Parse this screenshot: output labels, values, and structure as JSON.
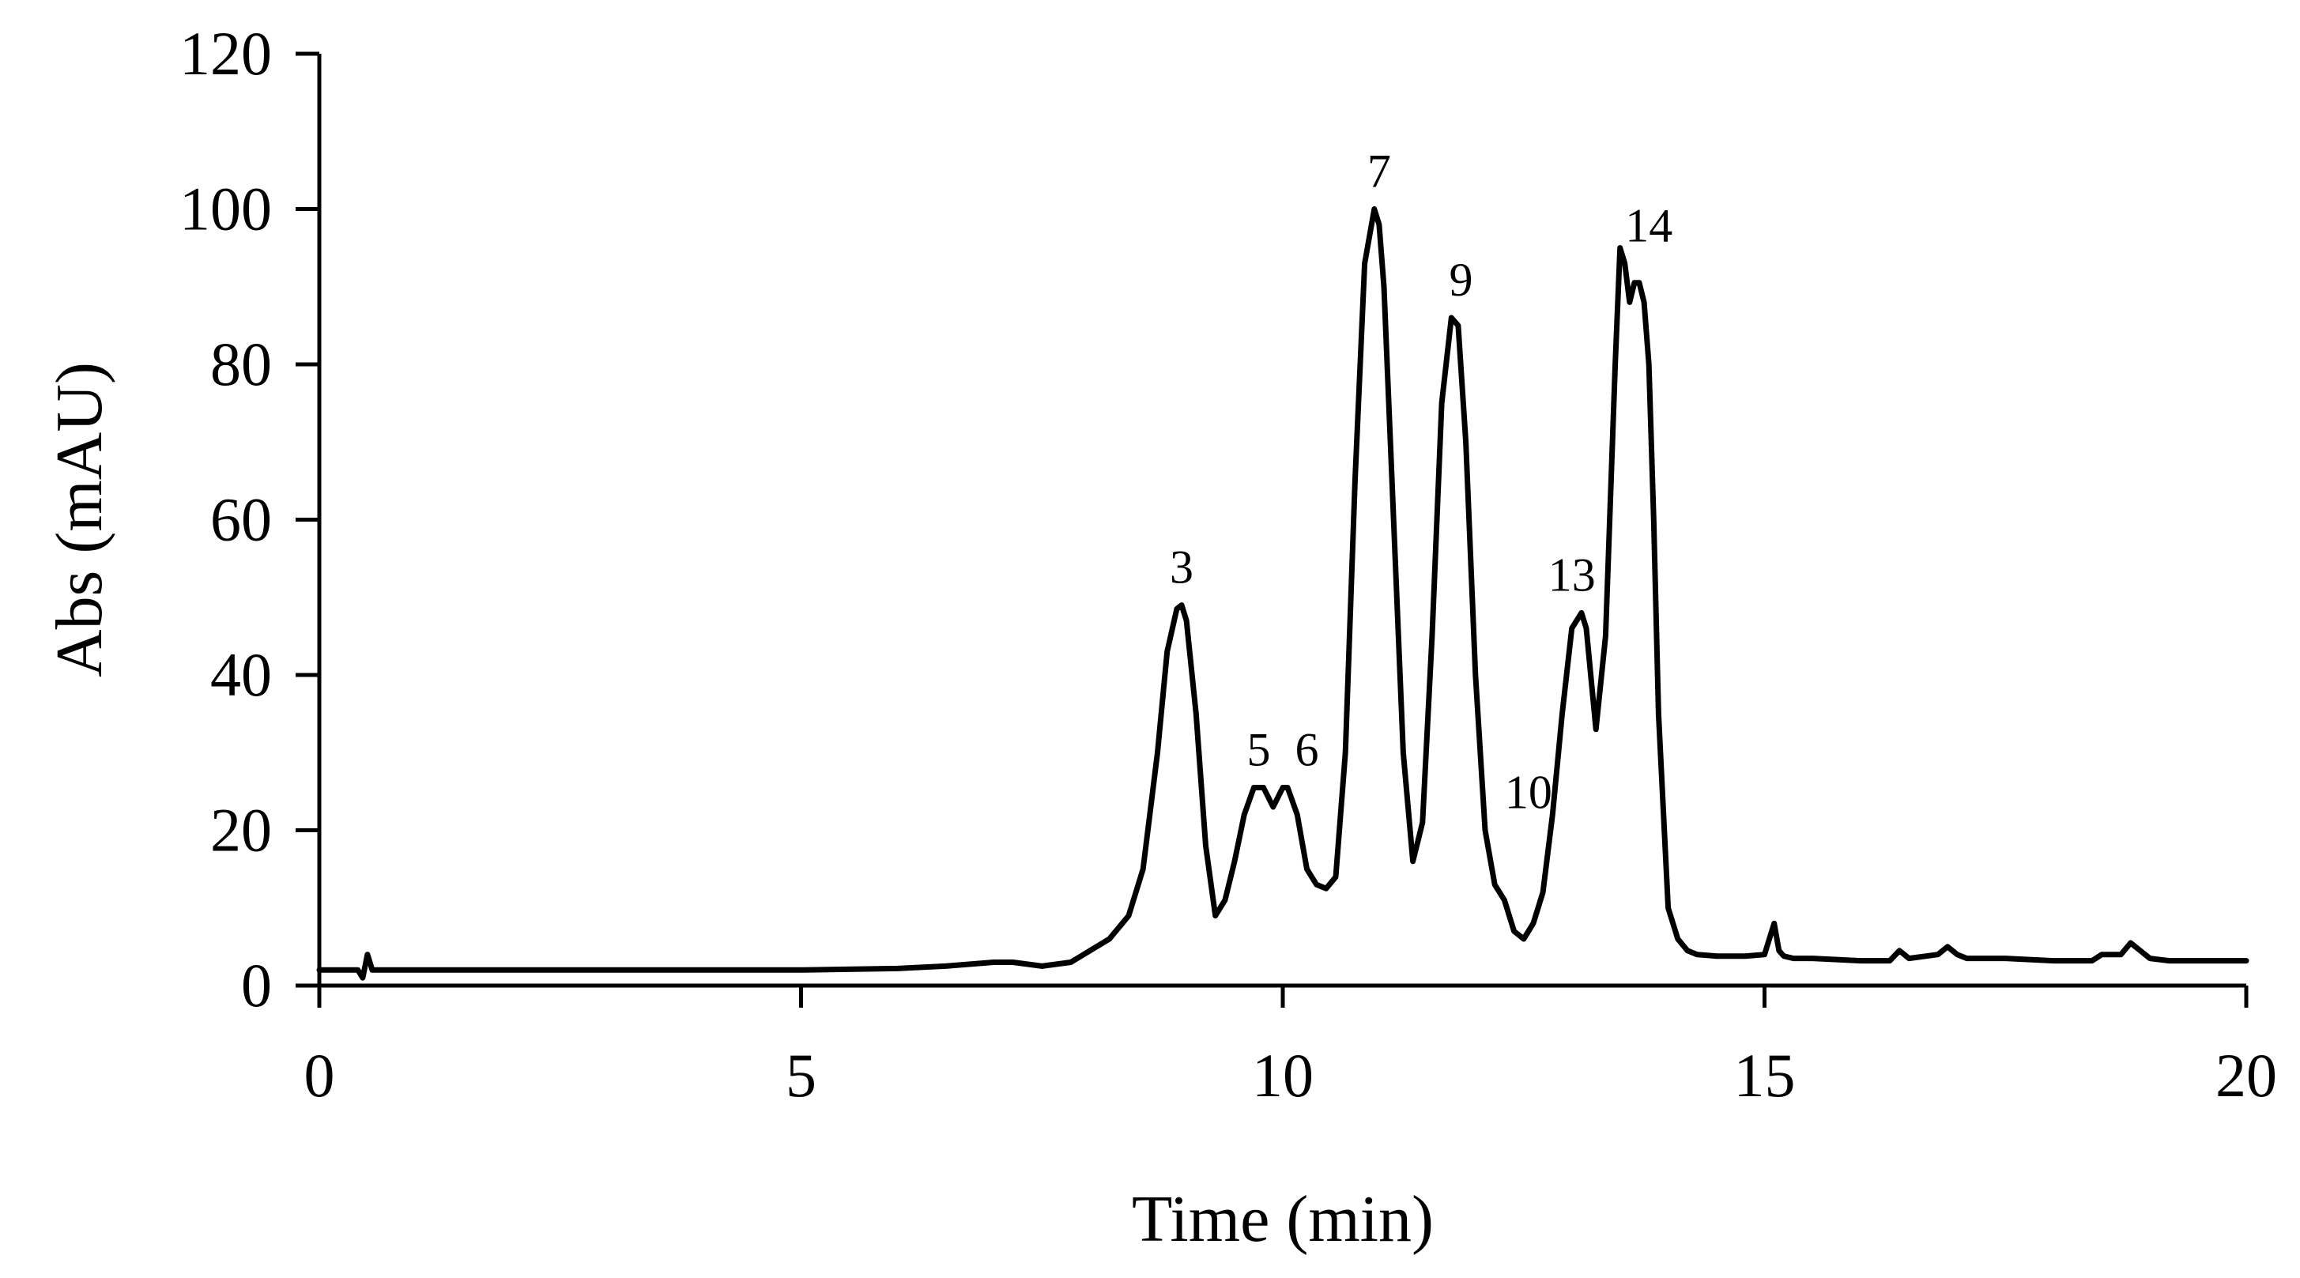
{
  "chart_data": {
    "type": "line",
    "xlabel": "Time  (min)",
    "ylabel": "Abs  (mAU)",
    "xlim": [
      0,
      20
    ],
    "ylim": [
      0,
      120
    ],
    "x_ticks": [
      0,
      5,
      10,
      15,
      20
    ],
    "y_ticks": [
      0,
      20,
      40,
      60,
      80,
      100,
      120
    ],
    "grid": false,
    "legend": "none",
    "line_color": "#000000",
    "series": [
      {
        "x": [
          0,
          0.4,
          0.45,
          0.5,
          0.55,
          0.6,
          0.7,
          1,
          2,
          3,
          4,
          5,
          6,
          6.5,
          7,
          7.2,
          7.5,
          7.8,
          8,
          8.2,
          8.4,
          8.55,
          8.7,
          8.8,
          8.9,
          8.95,
          9.0,
          9.1,
          9.2,
          9.3,
          9.4,
          9.5,
          9.6,
          9.7,
          9.8,
          9.9,
          10.0,
          10.05,
          10.15,
          10.25,
          10.35,
          10.45,
          10.55,
          10.65,
          10.75,
          10.85,
          10.95,
          11.0,
          11.05,
          11.15,
          11.25,
          11.35,
          11.45,
          11.55,
          11.65,
          11.75,
          11.82,
          11.9,
          12.0,
          12.1,
          12.2,
          12.3,
          12.4,
          12.5,
          12.6,
          12.7,
          12.8,
          12.9,
          13.0,
          13.1,
          13.15,
          13.25,
          13.35,
          13.45,
          13.5,
          13.55,
          13.6,
          13.65,
          13.7,
          13.75,
          13.8,
          13.85,
          13.9,
          14.0,
          14.1,
          14.2,
          14.3,
          14.5,
          14.8,
          15.0,
          15.05,
          15.1,
          15.15,
          15.2,
          15.3,
          15.5,
          16.0,
          16.3,
          16.4,
          16.5,
          16.8,
          16.9,
          17.0,
          17.1,
          17.5,
          18.0,
          18.4,
          18.5,
          18.7,
          18.8,
          18.9,
          19.0,
          19.2,
          19.5,
          20
        ],
        "y": [
          2,
          2,
          1,
          4,
          2,
          2,
          2,
          2,
          2,
          2,
          2,
          2,
          2.2,
          2.5,
          3,
          3,
          2.5,
          3,
          4.5,
          6,
          9,
          15,
          30,
          43,
          48.5,
          49,
          47,
          35,
          18,
          9,
          11,
          16,
          22,
          25.5,
          25.5,
          23,
          25.5,
          25.5,
          22,
          15,
          13,
          12.5,
          14,
          30,
          65,
          93,
          100,
          98,
          90,
          60,
          30,
          16,
          21,
          45,
          75,
          86,
          85,
          70,
          40,
          20,
          13,
          11,
          7,
          6,
          8,
          12,
          22,
          35,
          46,
          48,
          46,
          33,
          45,
          80,
          95,
          93,
          88,
          90.5,
          90.5,
          88,
          80,
          60,
          35,
          10,
          6,
          4.5,
          4,
          3.8,
          3.8,
          4,
          6,
          8,
          4.5,
          3.8,
          3.5,
          3.5,
          3.2,
          3.2,
          4.5,
          3.5,
          4,
          5,
          4,
          3.5,
          3.5,
          3.2,
          3.2,
          4,
          4,
          5.5,
          4.5,
          3.5,
          3.2,
          3.2,
          3.2
        ]
      }
    ],
    "annotations": [
      {
        "text": "3",
        "x": 8.95,
        "y": 49
      },
      {
        "text": "5",
        "x": 9.75,
        "y": 25.5
      },
      {
        "text": "6",
        "x": 10.25,
        "y": 25.5
      },
      {
        "text": "7",
        "x": 11.0,
        "y": 100
      },
      {
        "text": "9",
        "x": 11.85,
        "y": 86
      },
      {
        "text": "10",
        "x": 12.55,
        "y": 20
      },
      {
        "text": "13",
        "x": 13.0,
        "y": 48
      },
      {
        "text": "14",
        "x": 13.8,
        "y": 93
      }
    ]
  }
}
